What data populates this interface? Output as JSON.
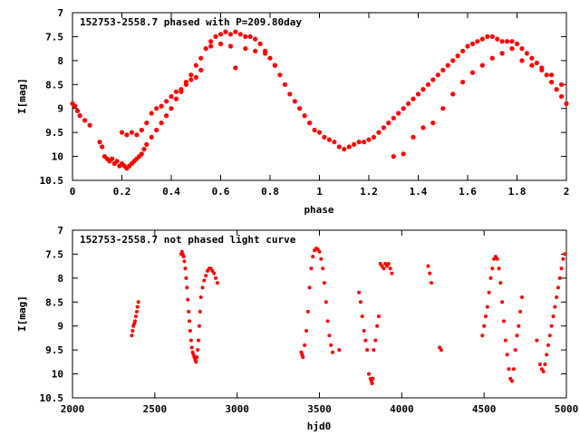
{
  "chart_data": [
    {
      "type": "scatter",
      "title": "152753-2558.7 phased with P=209.80day",
      "xlabel": "phase",
      "ylabel": "I[mag]",
      "xlim": [
        0,
        2
      ],
      "ylim": [
        10.5,
        7
      ],
      "y_inverted": true,
      "xticks": [
        "0",
        "0.2",
        "0.4",
        "0.6",
        "0.8",
        "1",
        "1.2",
        "1.4",
        "1.6",
        "1.8",
        "2"
      ],
      "yticks": [
        "7",
        "7.5",
        "8",
        "8.5",
        "9",
        "9.5",
        "10",
        "10.5"
      ],
      "grid": false,
      "marker_color": "#ff0000",
      "series": [
        {
          "x": [
            0.0,
            0.01,
            0.02,
            0.03,
            0.05,
            0.07,
            0.11,
            0.12,
            0.13,
            0.14,
            0.15,
            0.16,
            0.17,
            0.18,
            0.19,
            0.2,
            0.21,
            0.22,
            0.23,
            0.24,
            0.25,
            0.26,
            0.27,
            0.28,
            0.29,
            0.3,
            0.32,
            0.34,
            0.36,
            0.38,
            0.4,
            0.42,
            0.44,
            0.46,
            0.48,
            0.5,
            0.52,
            0.54,
            0.56,
            0.58,
            0.6,
            0.62,
            0.64,
            0.66,
            0.68,
            0.7,
            0.72,
            0.74,
            0.76,
            0.78,
            0.8,
            0.82,
            0.84,
            0.86,
            0.88,
            0.9,
            0.92,
            0.94,
            0.96,
            0.98,
            1.0,
            1.02,
            1.04,
            1.06,
            1.08,
            1.1,
            1.12,
            1.14,
            1.16,
            1.18,
            1.2,
            1.22,
            1.24,
            1.26,
            1.28,
            1.3,
            1.32,
            1.34,
            1.36,
            1.38,
            1.4,
            1.42,
            1.44,
            1.46,
            1.48,
            1.5,
            1.52,
            1.54,
            1.56,
            1.58,
            1.6,
            1.62,
            1.64,
            1.66,
            1.68,
            1.7,
            1.72,
            1.74,
            1.76,
            1.78,
            1.8,
            1.82,
            1.84,
            1.86,
            1.88,
            1.9,
            1.92,
            1.94,
            1.96,
            1.98,
            2.0,
            0.2,
            0.22,
            0.24,
            0.26,
            0.28,
            0.3,
            0.32,
            0.34,
            0.36,
            0.38,
            0.4,
            0.42,
            0.44,
            0.46,
            0.48,
            0.5,
            0.52,
            0.56,
            0.6,
            0.64,
            0.66,
            0.7,
            0.74,
            0.78,
            0.82,
            1.3,
            1.34,
            1.38,
            1.42,
            1.46,
            1.5,
            1.54,
            1.58,
            1.62,
            1.66,
            1.7,
            1.74,
            1.78,
            1.82,
            1.86,
            1.9,
            1.94,
            1.98
          ],
          "y": [
            8.9,
            8.95,
            9.05,
            9.15,
            9.25,
            9.35,
            9.7,
            9.8,
            10.0,
            10.05,
            10.1,
            10.05,
            10.15,
            10.1,
            10.2,
            10.15,
            10.2,
            10.25,
            10.2,
            10.15,
            10.1,
            10.05,
            10.0,
            9.95,
            9.85,
            9.75,
            9.6,
            9.45,
            9.3,
            9.15,
            9.0,
            8.8,
            8.65,
            8.45,
            8.3,
            8.1,
            7.95,
            7.75,
            7.6,
            7.5,
            7.45,
            7.4,
            7.45,
            7.4,
            7.45,
            7.5,
            7.5,
            7.55,
            7.65,
            7.8,
            7.95,
            8.1,
            8.3,
            8.5,
            8.7,
            8.85,
            9.0,
            9.15,
            9.3,
            9.45,
            9.5,
            9.6,
            9.65,
            9.7,
            9.8,
            9.85,
            9.8,
            9.75,
            9.7,
            9.7,
            9.65,
            9.6,
            9.5,
            9.4,
            9.3,
            9.2,
            9.1,
            9.0,
            8.9,
            8.8,
            8.7,
            8.6,
            8.5,
            8.4,
            8.3,
            8.2,
            8.1,
            8.0,
            7.9,
            7.8,
            7.7,
            7.65,
            7.6,
            7.55,
            7.5,
            7.5,
            7.55,
            7.6,
            7.6,
            7.6,
            7.65,
            7.75,
            7.85,
            7.95,
            8.05,
            8.15,
            8.3,
            8.45,
            8.6,
            8.75,
            8.9,
            9.5,
            9.55,
            9.5,
            9.55,
            9.45,
            9.3,
            9.1,
            9.0,
            8.95,
            8.85,
            8.75,
            8.65,
            8.6,
            8.5,
            8.4,
            8.35,
            8.2,
            7.7,
            7.65,
            7.7,
            8.15,
            7.75,
            7.8,
            7.85,
            8.1,
            10.0,
            9.95,
            9.6,
            9.4,
            9.3,
            9.0,
            8.7,
            8.45,
            8.25,
            8.1,
            7.95,
            7.85,
            7.75,
            8.0,
            8.1,
            8.2,
            8.3,
            8.5
          ]
        }
      ]
    },
    {
      "type": "scatter",
      "title": "152753-2558.7 not phased light curve",
      "xlabel": "hjd0",
      "ylabel": "I[mag]",
      "xlim": [
        2000,
        5000
      ],
      "ylim": [
        10.5,
        7
      ],
      "y_inverted": true,
      "xticks": [
        "2000",
        "2500",
        "3000",
        "3500",
        "4000",
        "4500",
        "5000"
      ],
      "yticks": [
        "7",
        "7.5",
        "8",
        "8.5",
        "9",
        "9.5",
        "10",
        "10.5"
      ],
      "grid": false,
      "marker_color": "#ff0000",
      "series": [
        {
          "x": [
            2360,
            2365,
            2370,
            2375,
            2380,
            2385,
            2390,
            2395,
            2400,
            2660,
            2665,
            2670,
            2675,
            2680,
            2685,
            2690,
            2695,
            2700,
            2705,
            2710,
            2715,
            2720,
            2725,
            2730,
            2735,
            2740,
            2745,
            2750,
            2755,
            2760,
            2765,
            2770,
            2775,
            2780,
            2790,
            2800,
            2810,
            2820,
            2830,
            2840,
            2850,
            2860,
            2870,
            2880,
            3390,
            3395,
            3400,
            3410,
            3420,
            3430,
            3440,
            3450,
            3460,
            3470,
            3480,
            3490,
            3500,
            3510,
            3520,
            3530,
            3540,
            3550,
            3560,
            3570,
            3580,
            3620,
            3740,
            3750,
            3760,
            3770,
            3780,
            3790,
            3800,
            3810,
            3815,
            3820,
            3825,
            3830,
            3840,
            3850,
            3860,
            3870,
            3880,
            3890,
            3900,
            3910,
            3920,
            3930,
            3940,
            4160,
            4170,
            4180,
            4230,
            4240,
            4490,
            4500,
            4510,
            4520,
            4530,
            4540,
            4550,
            4560,
            4570,
            4580,
            4590,
            4600,
            4610,
            4620,
            4630,
            4640,
            4650,
            4660,
            4670,
            4680,
            4690,
            4700,
            4710,
            4720,
            4730,
            4820,
            4840,
            4850,
            4860,
            4870,
            4880,
            4890,
            4900,
            4910,
            4920,
            4930,
            4940,
            4950,
            4960,
            4970,
            4980,
            4990
          ],
          "y": [
            9.2,
            9.1,
            9.0,
            8.95,
            8.9,
            8.8,
            8.7,
            8.6,
            8.5,
            7.5,
            7.45,
            7.5,
            7.55,
            7.65,
            7.8,
            8.0,
            8.2,
            8.45,
            8.7,
            8.9,
            9.1,
            9.3,
            9.45,
            9.55,
            9.6,
            9.65,
            9.7,
            9.75,
            9.65,
            9.5,
            9.3,
            9.0,
            8.7,
            8.4,
            8.2,
            8.05,
            7.95,
            7.85,
            7.8,
            7.8,
            7.85,
            7.9,
            8.0,
            8.1,
            9.55,
            9.6,
            9.65,
            9.4,
            9.1,
            8.7,
            8.2,
            7.8,
            7.55,
            7.42,
            7.38,
            7.4,
            7.45,
            7.6,
            7.8,
            8.1,
            8.5,
            8.9,
            9.2,
            9.4,
            9.55,
            9.5,
            8.3,
            8.5,
            8.8,
            9.1,
            9.3,
            9.5,
            10.0,
            10.1,
            10.15,
            10.2,
            10.1,
            9.5,
            9.3,
            9.0,
            8.8,
            7.7,
            7.75,
            7.8,
            7.7,
            7.75,
            7.7,
            7.8,
            7.9,
            7.75,
            7.9,
            8.1,
            9.45,
            9.5,
            9.2,
            9.0,
            8.8,
            8.6,
            8.3,
            8.0,
            7.8,
            7.6,
            7.55,
            7.6,
            7.8,
            8.1,
            8.5,
            8.9,
            9.3,
            9.6,
            9.9,
            10.1,
            10.15,
            9.9,
            9.5,
            9.2,
            9.0,
            8.7,
            8.4,
            9.3,
            9.8,
            9.9,
            9.95,
            9.8,
            9.6,
            9.4,
            9.2,
            9.0,
            8.8,
            8.6,
            8.4,
            8.2,
            8.0,
            7.8,
            7.6,
            7.5
          ]
        }
      ]
    }
  ]
}
